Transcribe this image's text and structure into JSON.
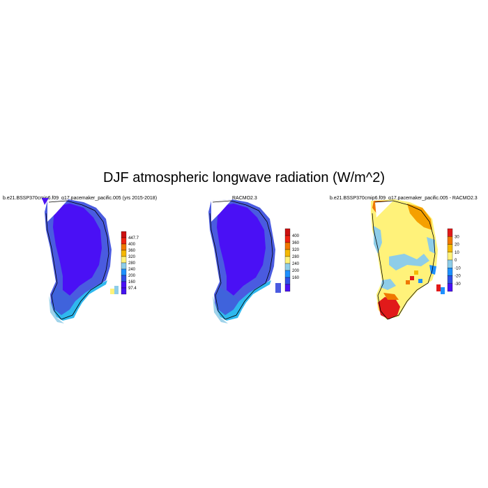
{
  "title": "DJF atmospheric longwave radiation (W/m^2)",
  "panels": [
    {
      "title": "b.e21.BSSP370cmip6.f09_g17.pacemaker_pacific.005 (yrs 2015-2018)",
      "colorbar": {
        "labels": [
          "447.7",
          "400",
          "360",
          "320",
          "280",
          "240",
          "200",
          "160",
          "97.4"
        ],
        "colors": [
          "#cc1111",
          "#ee2211",
          "#f07800",
          "#f5b800",
          "#fff27a",
          "#8ecde8",
          "#1e90ff",
          "#2f4fe6",
          "#4a10f5",
          "#4412f0"
        ]
      }
    },
    {
      "title": "RACMO2.3",
      "colorbar": {
        "labels": [
          "400",
          "360",
          "320",
          "280",
          "240",
          "200",
          "160"
        ],
        "colors": [
          "#cc1111",
          "#ee2211",
          "#f07800",
          "#f5b800",
          "#fff27a",
          "#8ecde8",
          "#1e90ff",
          "#2f4fe6",
          "#4a10f5"
        ]
      }
    },
    {
      "title": "b.e21.BSSP370cmip6.f09_g17.pacemaker_pacific.005 - RACMO2.3",
      "colorbar": {
        "labels": [
          "30",
          "20",
          "10",
          "0",
          "-10",
          "-20",
          "-30"
        ],
        "colors": [
          "#e11a1a",
          "#f07800",
          "#f5b800",
          "#fff27a",
          "#8ecde8",
          "#1e90ff",
          "#2f4fe6",
          "#4a10f5"
        ]
      }
    }
  ]
}
